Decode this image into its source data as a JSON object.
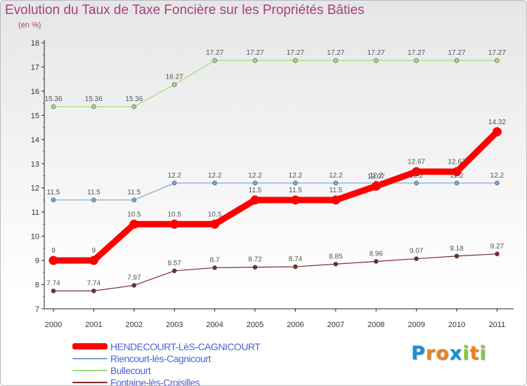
{
  "chart_data": {
    "type": "line",
    "title": "Evolution du Taux de Taxe Foncière sur les Propriétés Bâties",
    "ylabel": "(en %)",
    "xlabel": "",
    "ylim": [
      7,
      18
    ],
    "yticks": [
      7,
      8,
      9,
      10,
      11,
      12,
      13,
      14,
      15,
      16,
      17,
      18
    ],
    "x": [
      "2000",
      "2001",
      "2002",
      "2003",
      "2004",
      "2005",
      "2006",
      "2007",
      "2008",
      "2009",
      "2010",
      "2011"
    ],
    "series": [
      {
        "name": "HENDECOURT-LèS-CAGNICOURT",
        "color": "#ff0000",
        "values": [
          9,
          9,
          10.5,
          10.5,
          10.5,
          11.5,
          11.5,
          11.5,
          12.07,
          12.67,
          12.67,
          14.32
        ],
        "labels": [
          "9",
          "9",
          "10.5",
          "10.5",
          "10.5",
          "11.5",
          "11.5",
          "11.5",
          "12.07",
          "12.67",
          "12.67",
          "14.32"
        ]
      },
      {
        "name": "Riencourt-lès-Cagnicourt",
        "color": "#7ba4d0",
        "values": [
          11.5,
          11.5,
          11.5,
          12.2,
          12.2,
          12.2,
          12.2,
          12.2,
          12.2,
          12.2,
          12.2,
          12.2
        ],
        "labels": [
          "11.5",
          "11.5",
          "11.5",
          "12.2",
          "12.2",
          "12.2",
          "12.2",
          "12.2",
          "12.2",
          "12.2",
          "12.2",
          "12.2"
        ]
      },
      {
        "name": "Bullecourt",
        "color": "#9ee07a",
        "values": [
          15.36,
          15.36,
          15.36,
          16.27,
          17.27,
          17.27,
          17.27,
          17.27,
          17.27,
          17.27,
          17.27,
          17.27
        ],
        "labels": [
          "15.36",
          "15.36",
          "15.36",
          "16.27",
          "17.27",
          "17.27",
          "17.27",
          "17.27",
          "17.27",
          "17.27",
          "17.27",
          "17.27"
        ]
      },
      {
        "name": "Fontaine-lès-Croisilles",
        "color": "#7a2a2a",
        "values": [
          7.74,
          7.74,
          7.97,
          8.57,
          8.7,
          8.72,
          8.74,
          8.85,
          8.96,
          9.07,
          9.18,
          9.27
        ],
        "labels": [
          "7.74",
          "7.74",
          "7.97",
          "8.57",
          "8.7",
          "8.72",
          "8.74",
          "8.85",
          "8.96",
          "9.07",
          "9.18",
          "9.27"
        ]
      }
    ],
    "legend": [
      "HENDECOURT-LèS-CAGNICOURT",
      "Riencourt-lès-Cagnicourt",
      "Bullecourt",
      "Fontaine-lès-Croisilles"
    ],
    "legend_position": "bottom-left",
    "grid": false
  },
  "logo": {
    "text": "Proxiti",
    "letters": [
      "P",
      "r",
      "o",
      "x",
      "i",
      "t",
      "i"
    ],
    "colors": [
      "#1a8fd6",
      "#e8841e",
      "#e8841e",
      "#1a8fd6",
      "#8cc63f",
      "#e8841e",
      "#8cc63f"
    ]
  }
}
